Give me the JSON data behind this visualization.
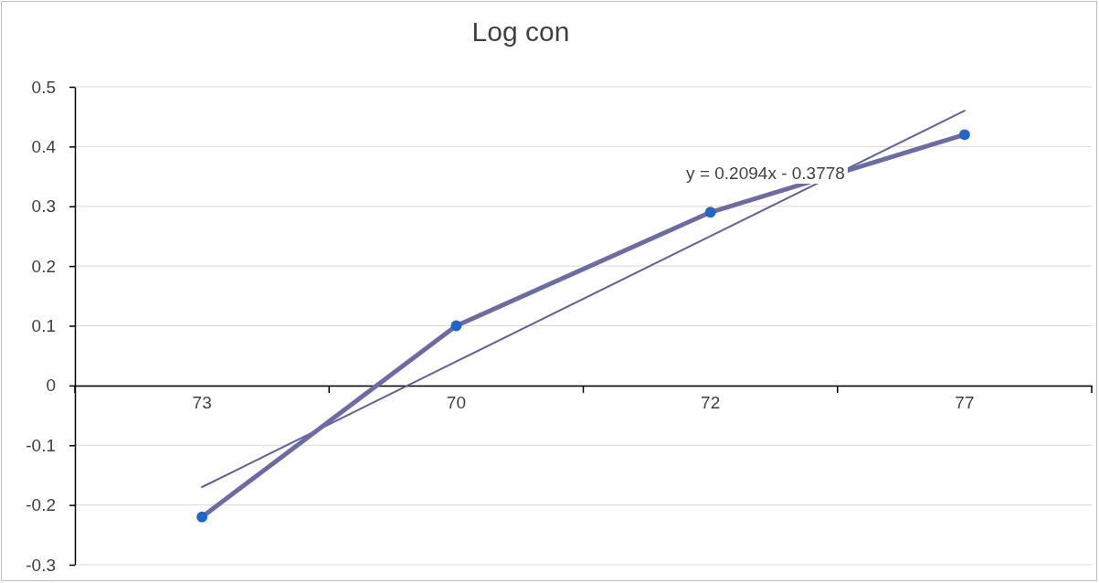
{
  "chart_data": {
    "type": "line",
    "title": "Log con",
    "categories": [
      "73",
      "70",
      "72",
      "77"
    ],
    "series": [
      {
        "color": "#6b6ba8",
        "colors": [
          "#1f66c8",
          "#1f66c8",
          "#1f66c8",
          "#1f66c8"
        ],
        "values": [
          -0.22,
          0.1,
          0.29,
          0.42
        ],
        "marker": "circle"
      },
      {
        "type": "line",
        "color": "#6060a0",
        "values": [
          -0.17,
          0.04,
          0.25,
          0.46
        ],
        "marker": "none"
      }
    ],
    "annotations": [
      "y = 0.2094x - 0.3778"
    ],
    "ylim": [
      -0.3,
      0.5
    ],
    "yticks": [
      -0.3,
      -0.2,
      -0.1,
      0,
      0.1,
      0.2,
      0.3,
      0.4,
      0.5
    ],
    "grid": "y"
  }
}
